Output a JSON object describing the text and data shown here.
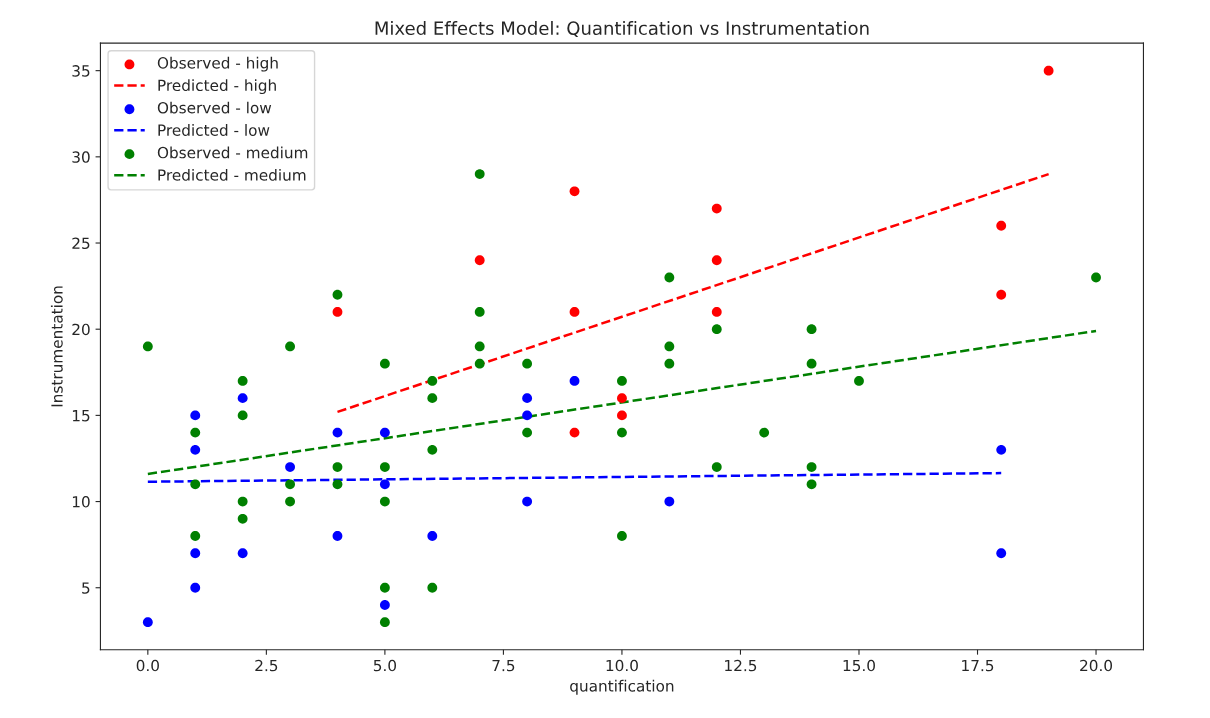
{
  "chart_data": {
    "type": "scatter",
    "title": "Mixed Effects Model: Quantification vs Instrumentation",
    "xlabel": "quantification",
    "ylabel": "Instrumentation",
    "xlim": [
      -1,
      21
    ],
    "xticks": [
      {
        "value": 0,
        "label": "0.0"
      },
      {
        "value": 2.5,
        "label": "2.5"
      },
      {
        "value": 5,
        "label": "5.0"
      },
      {
        "value": 7.5,
        "label": "7.5"
      },
      {
        "value": 10,
        "label": "10.0"
      },
      {
        "value": 12.5,
        "label": "12.5"
      },
      {
        "value": 15,
        "label": "15.0"
      },
      {
        "value": 17.5,
        "label": "17.5"
      },
      {
        "value": 20,
        "label": "20.0"
      }
    ],
    "ylim": [
      1.4,
      36.6
    ],
    "yticks": [
      5,
      10,
      15,
      20,
      25,
      30,
      35
    ],
    "grid": false,
    "legend": "top left",
    "series": [
      {
        "name": "Observed - high",
        "marker": "circle",
        "color": "#ff0000",
        "x": [
          4,
          7,
          9,
          9,
          9,
          10,
          10,
          12,
          12,
          12,
          18,
          18,
          19
        ],
        "values": [
          21,
          24,
          28,
          21,
          14,
          16,
          15,
          27,
          24,
          21,
          26,
          22,
          35
        ]
      },
      {
        "name": "Predicted - high",
        "type": "line",
        "line_style": "dashed",
        "color": "#ff0000",
        "x": [
          4,
          19
        ],
        "values": [
          15.2,
          29.0
        ]
      },
      {
        "name": "Observed - low",
        "marker": "circle",
        "color": "#0000ff",
        "x": [
          0,
          1,
          1,
          1,
          1,
          2,
          2,
          3,
          4,
          4,
          5,
          5,
          5,
          6,
          8,
          8,
          8,
          9,
          11,
          18,
          18
        ],
        "values": [
          3,
          15,
          13,
          7,
          5,
          16,
          7,
          12,
          14,
          8,
          14,
          11,
          4,
          8,
          16,
          15,
          10,
          17,
          10,
          13,
          7
        ]
      },
      {
        "name": "Predicted - low",
        "type": "line",
        "line_style": "dashed",
        "color": "#0000ff",
        "x": [
          0,
          18
        ],
        "values": [
          11.15,
          11.65
        ]
      },
      {
        "name": "Observed - medium",
        "marker": "circle",
        "color": "#008000",
        "x": [
          0,
          1,
          1,
          1,
          2,
          2,
          2,
          2,
          3,
          3,
          3,
          4,
          4,
          4,
          5,
          5,
          5,
          5,
          5,
          6,
          6,
          6,
          6,
          7,
          7,
          7,
          7,
          8,
          8,
          10,
          10,
          10,
          11,
          11,
          11,
          12,
          12,
          13,
          14,
          14,
          14,
          14,
          15,
          20
        ],
        "values": [
          19,
          14,
          11,
          8,
          17,
          15,
          10,
          9,
          19,
          11,
          10,
          22,
          12,
          11,
          18,
          12,
          10,
          5,
          3,
          17,
          16,
          13,
          5,
          29,
          21,
          19,
          18,
          18,
          14,
          17,
          14,
          8,
          23,
          19,
          18,
          20,
          12,
          14,
          20,
          18,
          12,
          11,
          17,
          23
        ]
      },
      {
        "name": "Predicted - medium",
        "type": "line",
        "line_style": "dashed",
        "color": "#008000",
        "x": [
          0,
          20
        ],
        "values": [
          11.6,
          19.9
        ]
      }
    ]
  }
}
